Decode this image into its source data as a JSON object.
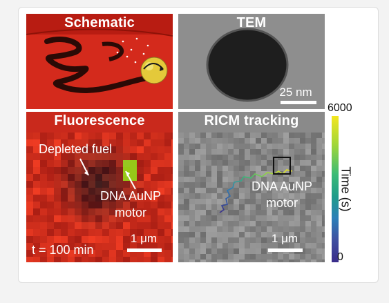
{
  "panels": {
    "schematic": {
      "title": "Schematic"
    },
    "tem": {
      "title": "TEM",
      "scale_label": "25 nm"
    },
    "fluorescence": {
      "title": "Fluorescence",
      "label_depleted": "Depleted fuel",
      "label_motor_1": "DNA AuNP",
      "label_motor_2": "motor",
      "time_label": "t = 100 min",
      "scale_label": "1 μm"
    },
    "ricm": {
      "title": "RICM tracking",
      "label_motor_1": "DNA AuNP",
      "label_motor_2": "motor",
      "scale_label": "1 μm"
    }
  },
  "colorbar": {
    "label": "Time (s)",
    "max_label": "6000",
    "min_label": "0",
    "colors": [
      "#f4e61e",
      "#9fd63a",
      "#3bbb76",
      "#1f9c8a",
      "#2c7fb8",
      "#3f4fa0",
      "#3a2c8a"
    ]
  }
}
